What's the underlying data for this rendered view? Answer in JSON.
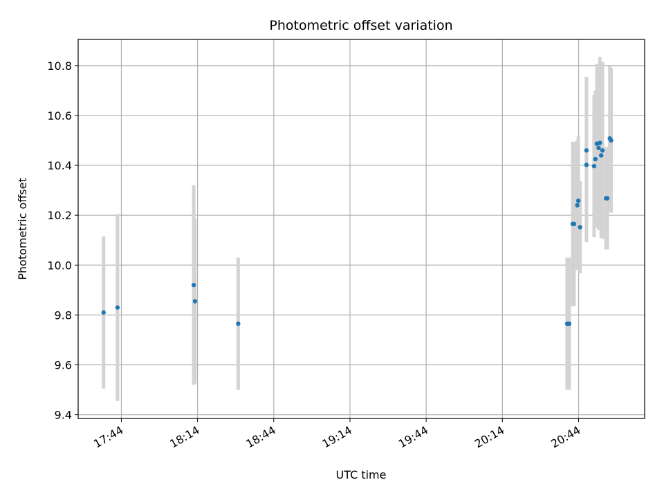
{
  "chart_data": {
    "type": "scatter",
    "title": "Photometric offset variation",
    "xlabel": "UTC time",
    "ylabel": "Photometric offset",
    "x_ticks": [
      "17:44",
      "18:14",
      "18:44",
      "19:14",
      "19:44",
      "20:14",
      "20:44"
    ],
    "y_ticks": [
      "9.4",
      "9.6",
      "9.8",
      "10.0",
      "10.2",
      "10.4",
      "10.6",
      "10.8"
    ],
    "xlim": [
      "17:27",
      "21:10"
    ],
    "ylim": [
      9.385,
      10.905
    ],
    "grid": true,
    "colors": {
      "points": "#1f77b4",
      "error_bars": "#d3d3d3",
      "grid": "#b0b0b0"
    },
    "points": [
      {
        "t": "17:37",
        "y": 9.81,
        "err": 0.305
      },
      {
        "t": "17:42.5",
        "y": 9.83,
        "err": 0.375
      },
      {
        "t": "18:12.5",
        "y": 9.92,
        "err": 0.4
      },
      {
        "t": "18:13",
        "y": 9.855,
        "err": 0.33
      },
      {
        "t": "18:30",
        "y": 9.765,
        "err": 0.265
      },
      {
        "t": "20:39.5",
        "y": 9.765,
        "err": 0.265
      },
      {
        "t": "20:40.3",
        "y": 9.765,
        "err": 0.265
      },
      {
        "t": "20:41.7",
        "y": 10.165,
        "err": 0.33
      },
      {
        "t": "20:42.2",
        "y": 10.165,
        "err": 0.33
      },
      {
        "t": "20:43.5",
        "y": 10.24,
        "err": 0.26
      },
      {
        "t": "20:43.9",
        "y": 10.258,
        "err": 0.26
      },
      {
        "t": "20:44.6",
        "y": 10.152,
        "err": 0.185
      },
      {
        "t": "20:47.1",
        "y": 10.46,
        "err": 0.295
      },
      {
        "t": "20:47.1",
        "y": 10.402,
        "err": 0.31
      },
      {
        "t": "20:50.1",
        "y": 10.397,
        "err": 0.285
      },
      {
        "t": "20:50.6",
        "y": 10.425,
        "err": 0.275
      },
      {
        "t": "20:51.2",
        "y": 10.487,
        "err": 0.32
      },
      {
        "t": "20:51.9",
        "y": 10.47,
        "err": 0.33
      },
      {
        "t": "20:52.4",
        "y": 10.49,
        "err": 0.345
      },
      {
        "t": "20:52.9",
        "y": 10.44,
        "err": 0.33
      },
      {
        "t": "20:53.4",
        "y": 10.46,
        "err": 0.355
      },
      {
        "t": "20:54.8",
        "y": 10.268,
        "err": 0.205
      },
      {
        "t": "20:55.3",
        "y": 10.268,
        "err": 0.205
      },
      {
        "t": "20:56.3",
        "y": 10.508,
        "err": 0.29
      },
      {
        "t": "20:56.8",
        "y": 10.5,
        "err": 0.29
      }
    ]
  }
}
